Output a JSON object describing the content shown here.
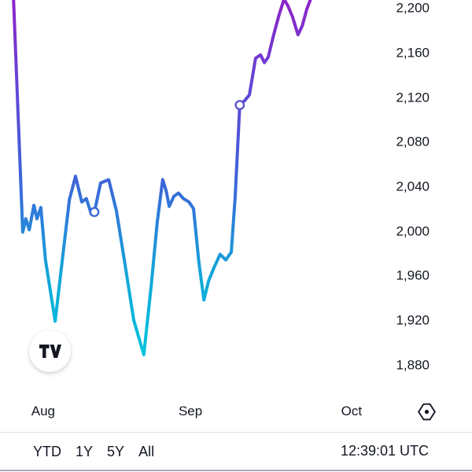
{
  "app": {
    "name": "TradingView mini price chart widget"
  },
  "colors": {
    "background": "#ffffff",
    "text": "#131722",
    "divider": "#e0e3eb",
    "bottom_edge": "#a9acb5",
    "line_purple": "#8e24c9",
    "line_blue": "#3f62d9",
    "line_cyan": "#00c3dc"
  },
  "chart_data": {
    "type": "line",
    "title": "",
    "grid": false,
    "legend": false,
    "xlabel": "",
    "ylabel": "",
    "ylim": [
      1856.4,
      2207.2
    ],
    "y_ticks": [
      {
        "v": 2200,
        "label": "2,200"
      },
      {
        "v": 2160,
        "label": "2,160"
      },
      {
        "v": 2120,
        "label": "2,120"
      },
      {
        "v": 2080,
        "label": "2,080"
      },
      {
        "v": 2040,
        "label": "2,040"
      },
      {
        "v": 2000,
        "label": "2,000"
      },
      {
        "v": 1960,
        "label": "1,960"
      },
      {
        "v": 1920,
        "label": "1,920"
      },
      {
        "v": 1880,
        "label": "1,880"
      }
    ],
    "x_ticks": [
      {
        "t": 0.112,
        "label": "Aug"
      },
      {
        "t": 0.494,
        "label": "Sep"
      },
      {
        "t": 0.912,
        "label": "Oct"
      }
    ],
    "line_gradient": [
      {
        "offset": "0%",
        "color": "#8e24c9"
      },
      {
        "offset": "25%",
        "color": "#6246d6"
      },
      {
        "offset": "50%",
        "color": "#3f62d9"
      },
      {
        "offset": "78%",
        "color": "#12a7da"
      },
      {
        "offset": "100%",
        "color": "#00c3dc"
      }
    ],
    "series": [
      {
        "name": "price",
        "points": [
          [
            0.035,
            2208
          ],
          [
            0.059,
            1999
          ],
          [
            0.067,
            2011
          ],
          [
            0.076,
            2001
          ],
          [
            0.088,
            2023
          ],
          [
            0.096,
            2011
          ],
          [
            0.106,
            2021
          ],
          [
            0.118,
            1974
          ],
          [
            0.143,
            1919
          ],
          [
            0.161,
            1972
          ],
          [
            0.18,
            2028
          ],
          [
            0.196,
            2049
          ],
          [
            0.212,
            2026
          ],
          [
            0.224,
            2029
          ],
          [
            0.237,
            2015
          ],
          [
            0.245,
            2017
          ],
          [
            0.261,
            2043
          ],
          [
            0.282,
            2046
          ],
          [
            0.302,
            2018
          ],
          [
            0.322,
            1975
          ],
          [
            0.347,
            1920
          ],
          [
            0.373,
            1889
          ],
          [
            0.392,
            1950
          ],
          [
            0.408,
            2008
          ],
          [
            0.422,
            2046
          ],
          [
            0.431,
            2036
          ],
          [
            0.439,
            2022
          ],
          [
            0.451,
            2031
          ],
          [
            0.463,
            2034
          ],
          [
            0.476,
            2029
          ],
          [
            0.49,
            2026
          ],
          [
            0.502,
            2020
          ],
          [
            0.516,
            1972
          ],
          [
            0.529,
            1938
          ],
          [
            0.541,
            1955
          ],
          [
            0.555,
            1967
          ],
          [
            0.571,
            1979
          ],
          [
            0.586,
            1974
          ],
          [
            0.6,
            1981
          ],
          [
            0.61,
            2030
          ],
          [
            0.622,
            2113
          ],
          [
            0.635,
            2117
          ],
          [
            0.647,
            2122
          ],
          [
            0.663,
            2155
          ],
          [
            0.676,
            2158
          ],
          [
            0.686,
            2151
          ],
          [
            0.696,
            2156
          ],
          [
            0.71,
            2176
          ],
          [
            0.724,
            2194
          ],
          [
            0.737,
            2208
          ],
          [
            0.747,
            2202
          ],
          [
            0.759,
            2192
          ],
          [
            0.773,
            2176
          ],
          [
            0.784,
            2184
          ],
          [
            0.796,
            2199
          ],
          [
            0.806,
            2208
          ]
        ]
      }
    ],
    "markers": [
      {
        "t": 0.245,
        "v": 2017,
        "color": "#3f66d6"
      },
      {
        "t": 0.622,
        "v": 2113,
        "color": "#5a52cf"
      }
    ]
  },
  "footer": {
    "ranges": [
      "YTD",
      "1Y",
      "5Y",
      "All"
    ],
    "clock": "12:39:01 UTC"
  },
  "icons": {
    "logo": "tradingview-logo",
    "settings": "hexagon-settings-icon"
  }
}
